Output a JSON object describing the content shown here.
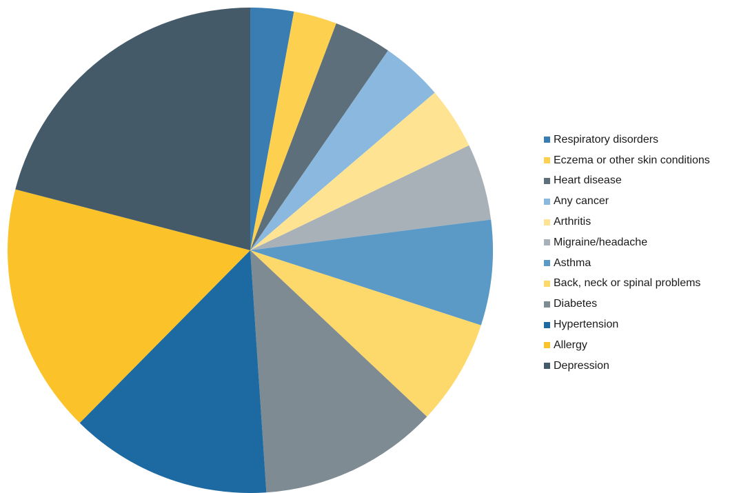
{
  "chart_data": {
    "type": "pie",
    "title": "",
    "start_angle_deg": 0,
    "direction": "clockwise",
    "legend_position": "right",
    "slices": [
      {
        "name": "Respiratory disorders",
        "value": 3.0,
        "color": "#3a7db3"
      },
      {
        "name": "Eczema or other skin conditions",
        "value": 3.0,
        "color": "#fdd050"
      },
      {
        "name": "Heart disease",
        "value": 4.0,
        "color": "#5c6f7b"
      },
      {
        "name": "Any cancer",
        "value": 4.3,
        "color": "#8ab8de"
      },
      {
        "name": "Arthritis",
        "value": 4.3,
        "color": "#fee392"
      },
      {
        "name": "Migraine/headache",
        "value": 5.3,
        "color": "#a8b1b8"
      },
      {
        "name": "Asthma",
        "value": 7.3,
        "color": "#5b9ac7"
      },
      {
        "name": "Back, neck or spinal problems",
        "value": 7.3,
        "color": "#fdd86a"
      },
      {
        "name": "Diabetes",
        "value": 12.4,
        "color": "#7e8b93"
      },
      {
        "name": "Hypertension",
        "value": 14.0,
        "color": "#1d6aa2"
      },
      {
        "name": "Allergy",
        "value": 17.3,
        "color": "#fbc22a"
      },
      {
        "name": "Depression",
        "value": 21.8,
        "color": "#445a69"
      }
    ]
  }
}
